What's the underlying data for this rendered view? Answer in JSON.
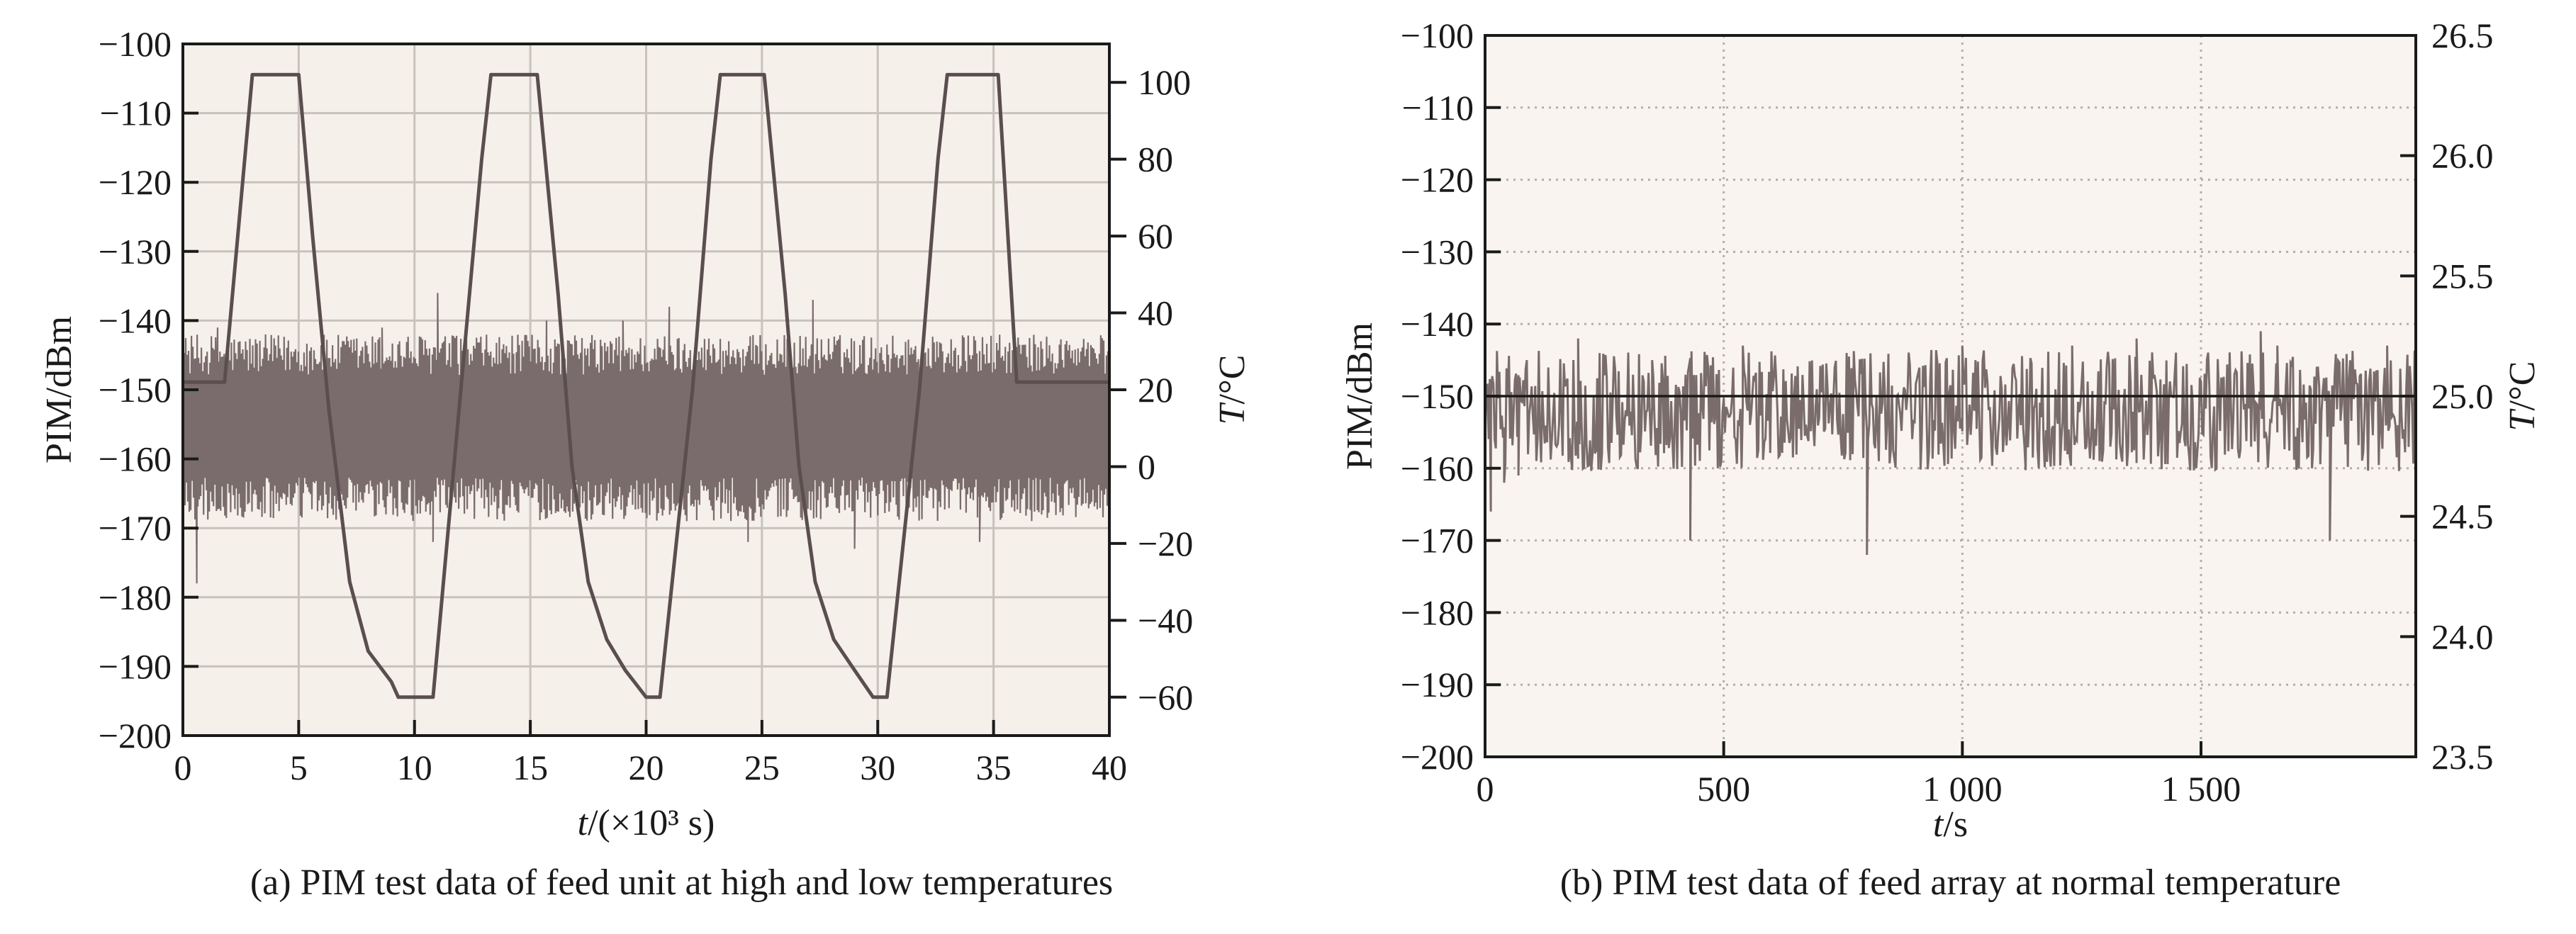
{
  "chart_data": [
    {
      "type": "line",
      "caption": "(a) PIM test data of feed unit at high and low temperatures",
      "xlabel_italic": "t",
      "xlabel_rest": "/(×10³ s)",
      "ylabel": "PIM/dBm",
      "y2label_italic": "T",
      "y2label_rest": "/°C",
      "xlim": [
        0,
        40
      ],
      "ylim": [
        -200,
        -100
      ],
      "y2lim": [
        -70,
        110
      ],
      "xticks": [
        "0",
        "5",
        "10",
        "15",
        "20",
        "25",
        "30",
        "35",
        "40"
      ],
      "yticks": [
        "−100",
        "−110",
        "−120",
        "−130",
        "−140",
        "−150",
        "−160",
        "−170",
        "−180",
        "−190",
        "−200"
      ],
      "y2ticks": [
        "100",
        "80",
        "60",
        "40",
        "20",
        "0",
        "−20",
        "−40",
        "−60"
      ],
      "grid": true,
      "plot_background": "#f6f0ea",
      "grid_color": "#c9c2bc",
      "pim_color": "#7a6c6c",
      "temp_color": "#5a4e4e",
      "pim_series": {
        "name": "PIM",
        "baseline_dBm": -155,
        "upper_envelope_dBm": -142,
        "lower_envelope_dBm": -169,
        "spikes": [
          [
            1.5,
            -141
          ],
          [
            8.6,
            -141
          ],
          [
            11,
            -136
          ],
          [
            15.7,
            -140
          ],
          [
            19,
            -140
          ],
          [
            21,
            -138
          ],
          [
            27.2,
            -137
          ],
          [
            10.8,
            -172
          ],
          [
            24.4,
            -172
          ],
          [
            29,
            -173
          ],
          [
            34.4,
            -172
          ],
          [
            0.6,
            -178
          ]
        ]
      },
      "temperature_series": {
        "name": "T",
        "points": [
          [
            0,
            22
          ],
          [
            1.8,
            22
          ],
          [
            3.0,
            102
          ],
          [
            5.0,
            102
          ],
          [
            5.6,
            60
          ],
          [
            6.3,
            15
          ],
          [
            7.2,
            -30
          ],
          [
            8.0,
            -48
          ],
          [
            9.0,
            -56
          ],
          [
            9.3,
            -60
          ],
          [
            10.8,
            -60
          ],
          [
            12.0,
            20
          ],
          [
            12.9,
            80
          ],
          [
            13.3,
            102
          ],
          [
            15.3,
            102
          ],
          [
            16.2,
            45
          ],
          [
            16.8,
            0
          ],
          [
            17.5,
            -30
          ],
          [
            18.3,
            -45
          ],
          [
            19.1,
            -53
          ],
          [
            20.0,
            -60
          ],
          [
            20.6,
            -60
          ],
          [
            22.0,
            20
          ],
          [
            22.8,
            80
          ],
          [
            23.2,
            102
          ],
          [
            25.1,
            102
          ],
          [
            26.0,
            45
          ],
          [
            26.6,
            0
          ],
          [
            27.3,
            -30
          ],
          [
            28.1,
            -45
          ],
          [
            29.0,
            -53
          ],
          [
            29.8,
            -60
          ],
          [
            30.4,
            -60
          ],
          [
            31.8,
            20
          ],
          [
            32.6,
            80
          ],
          [
            33.0,
            102
          ],
          [
            35.2,
            102
          ],
          [
            36.0,
            22
          ],
          [
            40,
            22
          ]
        ]
      }
    },
    {
      "type": "line",
      "caption": "(b) PIM test data of feed array at normal temperature",
      "xlabel_italic": "t",
      "xlabel_rest": "/s",
      "ylabel": "PIM/dBm",
      "y2label_italic": "T",
      "y2label_rest": "/°C",
      "xlim": [
        0,
        1950
      ],
      "ylim": [
        -200,
        -100
      ],
      "y2lim": [
        23.5,
        26.5
      ],
      "xticks": [
        [
          0,
          "0"
        ],
        [
          500,
          "500"
        ],
        [
          1000,
          "1 000"
        ],
        [
          1500,
          "1 500"
        ]
      ],
      "yticks": [
        "−100",
        "−110",
        "−120",
        "−130",
        "−140",
        "−150",
        "−160",
        "−170",
        "−180",
        "−190",
        "−200"
      ],
      "y2ticks": [
        "26.5",
        "26.0",
        "25.5",
        "25.0",
        "24.5",
        "24.0",
        "23.5"
      ],
      "grid": true,
      "grid_style": "dotted",
      "plot_background": "#f9f4ef",
      "grid_color": "#b5aea8",
      "pim_color": "#7a6c6c",
      "temp_color": "#1a1a1a",
      "pim_series": {
        "name": "PIM",
        "baseline_dBm": -152,
        "upper_envelope_dBm": -145,
        "lower_envelope_dBm": -161,
        "spikes": [
          [
            12,
            -166
          ],
          [
            40,
            -162
          ],
          [
            70,
            -161
          ],
          [
            195,
            -142
          ],
          [
            350,
            -145
          ],
          [
            430,
            -170
          ],
          [
            540,
            -143
          ],
          [
            800,
            -172
          ],
          [
            1000,
            -143
          ],
          [
            1230,
            -143
          ],
          [
            1365,
            -142
          ],
          [
            1625,
            -141
          ],
          [
            1660,
            -143
          ],
          [
            1770,
            -170
          ],
          [
            1890,
            -143
          ]
        ]
      },
      "temperature_series": {
        "name": "T",
        "constant_value": 25.0
      }
    }
  ]
}
